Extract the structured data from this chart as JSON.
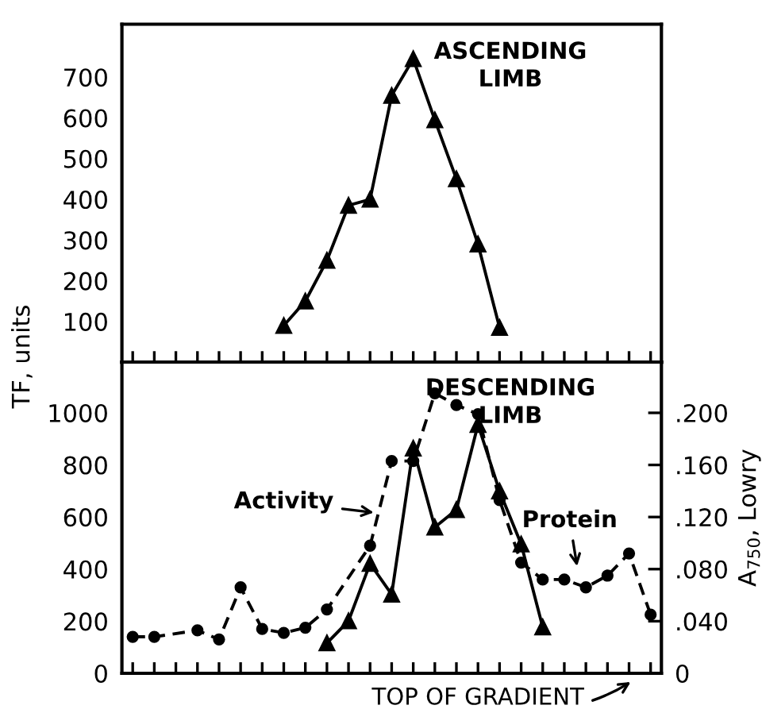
{
  "chart_data": [
    {
      "type": "line",
      "ylabel": "TF, units",
      "annotations": [
        "ASCENDING\nLIMB"
      ],
      "categories": [
        null,
        null,
        null,
        null,
        null,
        null,
        null,
        null,
        null,
        null,
        null,
        null,
        null,
        null,
        null,
        null,
        null,
        null,
        null,
        null,
        null,
        null,
        null,
        null,
        null
      ],
      "ylim": [
        0,
        830
      ],
      "yticks": [
        100,
        200,
        300,
        400,
        500,
        600,
        700
      ],
      "grid": false,
      "legend": false,
      "series": [
        {
          "color": "#000000",
          "marker": "triangle",
          "line_style": "solid",
          "values": [
            null,
            null,
            null,
            null,
            null,
            null,
            null,
            90,
            150,
            250,
            385,
            400,
            655,
            745,
            595,
            450,
            290,
            85,
            null,
            null,
            null,
            null,
            null,
            null,
            null
          ]
        }
      ]
    },
    {
      "type": "line",
      "y2label": "A$_{750}$, Lowry",
      "annotations": [
        "DESCENDING\nLIMB",
        "Activity",
        "Protein",
        "TOP OF GRADIENT"
      ],
      "categories": [
        null,
        null,
        null,
        null,
        null,
        null,
        null,
        null,
        null,
        null,
        null,
        null,
        null,
        null,
        null,
        null,
        null,
        null,
        null,
        null,
        null,
        null,
        null,
        null,
        null
      ],
      "ylim": [
        0,
        1195
      ],
      "yticks": [
        0,
        200,
        400,
        600,
        800,
        1000
      ],
      "y2lim": [
        0,
        0.239
      ],
      "y2ticks": [
        0,
        {
          "value": 0.04,
          "label": ".040"
        },
        {
          "value": 0.08,
          "label": ".080"
        },
        {
          "value": 0.12,
          "label": ".120"
        },
        {
          "value": 0.16,
          "label": ".160"
        },
        {
          "value": 0.2,
          "label": ".200"
        }
      ],
      "grid": false,
      "legend": false,
      "series": [
        {
          "color": "#000000",
          "marker": "circle",
          "line_style": "dashed",
          "axis": "y2",
          "values": [
            0.028,
            0.028,
            null,
            0.033,
            0.026,
            0.066,
            0.034,
            0.031,
            0.035,
            0.049,
            null,
            0.098,
            0.163,
            0.163,
            0.215,
            0.206,
            0.199,
            0.133,
            0.085,
            0.072,
            0.072,
            0.066,
            0.075,
            0.092,
            0.045
          ]
        },
        {
          "color": "#000000",
          "marker": "triangle",
          "line_style": "solid",
          "values": [
            null,
            null,
            null,
            null,
            null,
            null,
            null,
            null,
            null,
            116,
            201,
            421,
            303,
            864,
            561,
            628,
            955,
            699,
            496,
            177,
            null,
            null,
            null,
            null,
            null
          ]
        }
      ]
    }
  ]
}
